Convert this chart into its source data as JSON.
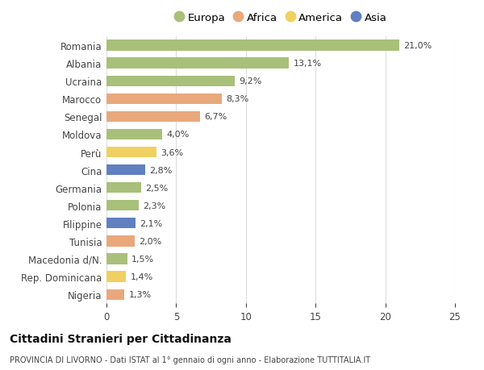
{
  "categories": [
    "Romania",
    "Albania",
    "Ucraina",
    "Marocco",
    "Senegal",
    "Moldova",
    "Perù",
    "Cina",
    "Germania",
    "Polonia",
    "Filippine",
    "Tunisia",
    "Macedonia d/N.",
    "Rep. Dominicana",
    "Nigeria"
  ],
  "values": [
    21.0,
    13.1,
    9.2,
    8.3,
    6.7,
    4.0,
    3.6,
    2.8,
    2.5,
    2.3,
    2.1,
    2.0,
    1.5,
    1.4,
    1.3
  ],
  "labels": [
    "21,0%",
    "13,1%",
    "9,2%",
    "8,3%",
    "6,7%",
    "4,0%",
    "3,6%",
    "2,8%",
    "2,5%",
    "2,3%",
    "2,1%",
    "2,0%",
    "1,5%",
    "1,4%",
    "1,3%"
  ],
  "continents": [
    "Europa",
    "Europa",
    "Europa",
    "Africa",
    "Africa",
    "Europa",
    "America",
    "Asia",
    "Europa",
    "Europa",
    "Asia",
    "Africa",
    "Europa",
    "America",
    "Africa"
  ],
  "continent_colors": {
    "Europa": "#a8c07a",
    "Africa": "#e8a87c",
    "America": "#f0d060",
    "Asia": "#6080c0"
  },
  "legend_entries": [
    "Europa",
    "Africa",
    "America",
    "Asia"
  ],
  "legend_colors": [
    "#a8c07a",
    "#e8a87c",
    "#f0d060",
    "#6080c0"
  ],
  "xlim": [
    0,
    25
  ],
  "xticks": [
    0,
    5,
    10,
    15,
    20,
    25
  ],
  "background_color": "#ffffff",
  "title": "Cittadini Stranieri per Cittadinanza",
  "subtitle": "PROVINCIA DI LIVORNO - Dati ISTAT al 1° gennaio di ogni anno - Elaborazione TUTTITALIA.IT",
  "grid_color": "#dddddd",
  "bar_height": 0.6
}
